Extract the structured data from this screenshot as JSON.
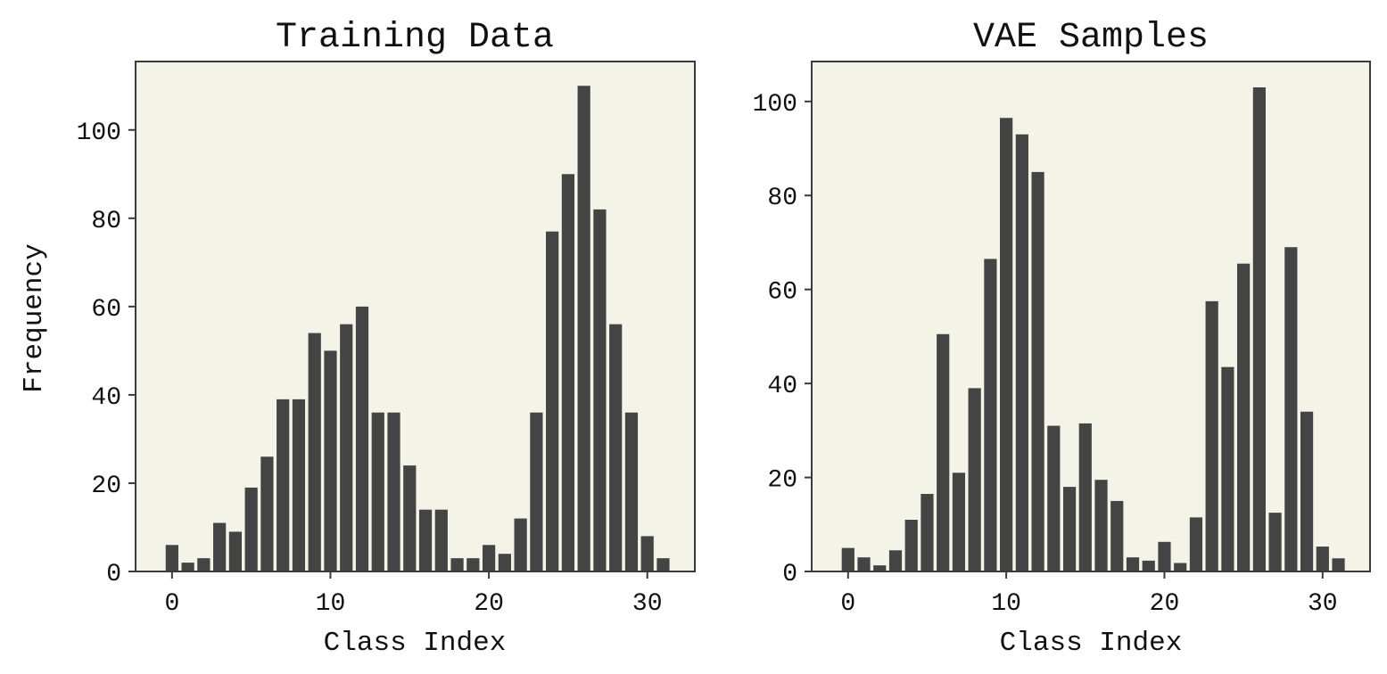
{
  "colors": {
    "panel_bg": "#f3f3e8",
    "bar": "#444444",
    "frame": "#3a3a3a"
  },
  "chart_data": [
    {
      "type": "bar",
      "title": "Training Data",
      "xlabel": "Class Index",
      "ylabel": "Frequency",
      "x": [
        0,
        1,
        2,
        3,
        4,
        5,
        6,
        7,
        8,
        9,
        10,
        11,
        12,
        13,
        14,
        15,
        16,
        17,
        18,
        19,
        20,
        21,
        22,
        23,
        24,
        25,
        26,
        27,
        28,
        29,
        30,
        31
      ],
      "values": [
        6,
        2,
        3,
        11,
        9,
        19,
        26,
        39,
        39,
        54,
        50,
        56,
        60,
        36,
        36,
        24,
        14,
        14,
        3,
        3,
        6,
        4,
        12,
        36,
        77,
        90,
        110,
        82,
        56,
        36,
        8,
        3
      ],
      "xlim": [
        -2.3,
        33
      ],
      "ylim": [
        0,
        115.5
      ],
      "xticks": [
        0,
        10,
        20,
        30
      ],
      "yticks": [
        0,
        20,
        40,
        60,
        80,
        100
      ],
      "grid": false
    },
    {
      "type": "bar",
      "title": "VAE Samples",
      "xlabel": "Class Index",
      "ylabel": "",
      "x": [
        0,
        1,
        2,
        3,
        4,
        5,
        6,
        7,
        8,
        9,
        10,
        11,
        12,
        13,
        14,
        15,
        16,
        17,
        18,
        19,
        20,
        21,
        22,
        23,
        24,
        25,
        26,
        27,
        28,
        29,
        30,
        31
      ],
      "values": [
        5,
        3,
        1.3,
        4.5,
        11,
        16.5,
        50.5,
        21,
        39,
        66.5,
        96.5,
        93,
        85,
        31,
        18,
        31.5,
        19.5,
        15,
        3,
        2.3,
        6.3,
        1.8,
        11.5,
        57.5,
        43.5,
        65.5,
        103,
        12.5,
        69,
        34,
        5.3,
        2.8
      ],
      "xlim": [
        -2.3,
        33
      ],
      "ylim": [
        0,
        108.5
      ],
      "xticks": [
        0,
        10,
        20,
        30
      ],
      "yticks": [
        0,
        20,
        40,
        60,
        80,
        100
      ],
      "grid": false
    }
  ]
}
